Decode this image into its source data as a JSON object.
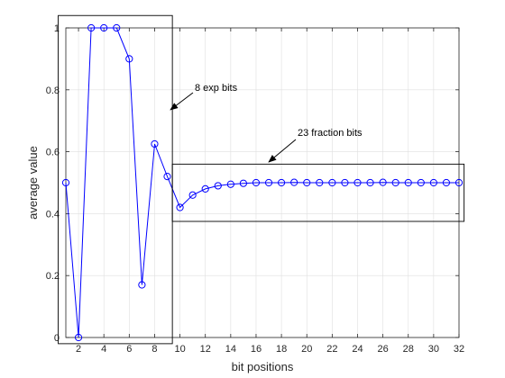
{
  "chart_data": {
    "type": "line",
    "xlabel": "bit positions",
    "ylabel": "average value",
    "xlim": [
      1,
      32
    ],
    "ylim": [
      0,
      1
    ],
    "xticks": [
      2,
      4,
      6,
      8,
      10,
      12,
      14,
      16,
      18,
      20,
      22,
      24,
      26,
      28,
      30,
      32
    ],
    "yticks": [
      0,
      0.2,
      0.4,
      0.6,
      0.8,
      1
    ],
    "grid": true,
    "series": [
      {
        "marker": "circle",
        "color": "#0000ff",
        "x": [
          1,
          2,
          3,
          4,
          5,
          6,
          7,
          8,
          9,
          10,
          11,
          12,
          13,
          14,
          15,
          16,
          17,
          18,
          19,
          20,
          21,
          22,
          23,
          24,
          25,
          26,
          27,
          28,
          29,
          30,
          31,
          32
        ],
        "values": [
          0.5,
          0.0,
          1.0,
          1.0,
          1.0,
          0.9,
          0.17,
          0.625,
          0.52,
          0.42,
          0.46,
          0.48,
          0.49,
          0.495,
          0.498,
          0.5,
          0.5,
          0.5,
          0.501,
          0.5,
          0.5,
          0.5,
          0.5,
          0.5,
          0.5,
          0.501,
          0.5,
          0.5,
          0.5,
          0.5,
          0.5,
          0.5
        ]
      }
    ],
    "annotations": [
      {
        "text": "8 exp bits",
        "box": {
          "x": [
            0.4,
            9.4
          ],
          "y": [
            -0.02,
            1.04
          ]
        }
      },
      {
        "text": "23 fraction bits",
        "box": {
          "x": [
            9.4,
            32.4
          ],
          "y": [
            0.375,
            0.56
          ]
        }
      }
    ]
  }
}
